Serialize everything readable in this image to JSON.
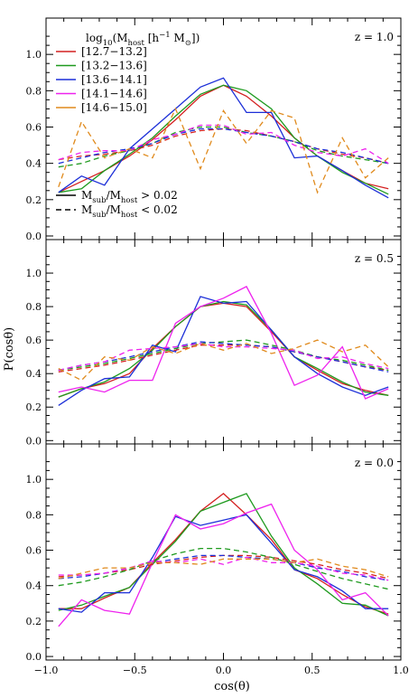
{
  "figure": {
    "ylabel": "P(cosθ)",
    "xlabel": "cos(θ)"
  },
  "legend": {
    "title_parts": [
      "log",
      "10",
      "(M",
      "host",
      " [h",
      "−1",
      " M",
      "⊙",
      "])"
    ],
    "mass_bins": [
      {
        "label": "[12.7−13.2]",
        "color": "#d42020"
      },
      {
        "label": "[13.2−13.6]",
        "color": "#1e9a1e"
      },
      {
        "label": "[13.6−14.1]",
        "color": "#1c2fd8"
      },
      {
        "label": "[14.1−14.6]",
        "color": "#ee22ee"
      },
      {
        "label": "[14.6−15.0]",
        "color": "#e08a1c"
      }
    ],
    "style_solid_parts": [
      "M",
      "sub",
      "/M",
      "host",
      " > 0.02"
    ],
    "style_dashed_parts": [
      "M",
      "sub",
      "/M",
      "host",
      " < 0.02"
    ]
  },
  "chart_data": [
    {
      "type": "line",
      "panel": "top",
      "annotation": "z = 1.0",
      "x": [
        -0.93,
        -0.8,
        -0.67,
        -0.53,
        -0.4,
        -0.27,
        -0.13,
        0.0,
        0.13,
        0.27,
        0.4,
        0.53,
        0.67,
        0.8,
        0.93
      ],
      "xlim": [
        -1.0,
        1.0
      ],
      "ylim": [
        -0.02,
        1.2
      ],
      "yticks": [
        "0.0",
        "0.2",
        "0.4",
        "0.6",
        "0.8",
        "1.0"
      ],
      "xticks": [
        "−1.0",
        "−0.5",
        "0.0",
        "0.5",
        "1.0"
      ],
      "series": [
        {
          "color": "#d42020",
          "dash": false,
          "values": [
            0.24,
            0.3,
            0.36,
            0.44,
            0.53,
            0.64,
            0.77,
            0.83,
            0.77,
            0.66,
            0.54,
            0.44,
            0.36,
            0.29,
            0.26
          ]
        },
        {
          "color": "#1e9a1e",
          "dash": false,
          "values": [
            0.24,
            0.26,
            0.36,
            0.45,
            0.54,
            0.66,
            0.78,
            0.83,
            0.8,
            0.7,
            0.54,
            0.44,
            0.35,
            0.29,
            0.23
          ]
        },
        {
          "color": "#1c2fd8",
          "dash": false,
          "values": [
            0.24,
            0.33,
            0.28,
            0.48,
            0.59,
            0.7,
            0.82,
            0.87,
            0.68,
            0.68,
            0.43,
            0.44,
            0.36,
            0.28,
            0.21
          ]
        },
        {
          "color": "#d42020",
          "dash": true,
          "values": [
            0.42,
            0.44,
            0.45,
            0.47,
            0.5,
            0.55,
            0.58,
            0.59,
            0.58,
            0.55,
            0.52,
            0.48,
            0.45,
            0.43,
            0.4
          ]
        },
        {
          "color": "#1e9a1e",
          "dash": true,
          "values": [
            0.38,
            0.4,
            0.44,
            0.47,
            0.51,
            0.57,
            0.6,
            0.6,
            0.57,
            0.55,
            0.52,
            0.47,
            0.44,
            0.42,
            0.4
          ]
        },
        {
          "color": "#1c2fd8",
          "dash": true,
          "values": [
            0.4,
            0.43,
            0.46,
            0.48,
            0.51,
            0.56,
            0.59,
            0.59,
            0.57,
            0.55,
            0.52,
            0.48,
            0.46,
            0.43,
            0.4
          ]
        },
        {
          "color": "#ee22ee",
          "dash": true,
          "values": [
            0.42,
            0.46,
            0.47,
            0.47,
            0.53,
            0.56,
            0.61,
            0.61,
            0.56,
            0.57,
            0.5,
            0.46,
            0.44,
            0.48,
            0.4
          ]
        },
        {
          "color": "#e08a1c",
          "dash": true,
          "values": [
            0.27,
            0.63,
            0.43,
            0.48,
            0.43,
            0.7,
            0.37,
            0.69,
            0.51,
            0.69,
            0.65,
            0.24,
            0.54,
            0.32,
            0.43
          ]
        }
      ]
    },
    {
      "type": "line",
      "panel": "middle",
      "annotation": "z = 0.5",
      "x": [
        -0.93,
        -0.8,
        -0.67,
        -0.53,
        -0.4,
        -0.27,
        -0.13,
        0.0,
        0.13,
        0.27,
        0.4,
        0.53,
        0.67,
        0.8,
        0.93
      ],
      "xlim": [
        -1.0,
        1.0
      ],
      "ylim": [
        -0.02,
        1.2
      ],
      "yticks": [
        "0.0",
        "0.2",
        "0.4",
        "0.6",
        "0.8",
        "1.0"
      ],
      "xticks": [
        "−1.0",
        "−0.5",
        "0.0",
        "0.5",
        "1.0"
      ],
      "series": [
        {
          "color": "#d42020",
          "dash": false,
          "values": [
            0.26,
            0.31,
            0.34,
            0.4,
            0.55,
            0.68,
            0.8,
            0.82,
            0.8,
            0.65,
            0.5,
            0.42,
            0.34,
            0.3,
            0.27
          ]
        },
        {
          "color": "#1e9a1e",
          "dash": false,
          "values": [
            0.26,
            0.31,
            0.35,
            0.43,
            0.54,
            0.68,
            0.8,
            0.83,
            0.81,
            0.66,
            0.5,
            0.43,
            0.35,
            0.29,
            0.27
          ]
        },
        {
          "color": "#1c2fd8",
          "dash": false,
          "values": [
            0.21,
            0.3,
            0.37,
            0.38,
            0.57,
            0.53,
            0.86,
            0.82,
            0.83,
            0.66,
            0.5,
            0.4,
            0.32,
            0.27,
            0.32
          ]
        },
        {
          "color": "#ee22ee",
          "dash": false,
          "values": [
            0.29,
            0.32,
            0.29,
            0.36,
            0.36,
            0.7,
            0.8,
            0.85,
            0.92,
            0.64,
            0.33,
            0.39,
            0.56,
            0.25,
            0.31
          ]
        },
        {
          "color": "#d42020",
          "dash": true,
          "values": [
            0.41,
            0.43,
            0.45,
            0.48,
            0.51,
            0.54,
            0.57,
            0.57,
            0.57,
            0.56,
            0.53,
            0.5,
            0.47,
            0.44,
            0.42
          ]
        },
        {
          "color": "#1e9a1e",
          "dash": true,
          "values": [
            0.42,
            0.44,
            0.46,
            0.49,
            0.52,
            0.55,
            0.58,
            0.59,
            0.6,
            0.57,
            0.54,
            0.5,
            0.48,
            0.45,
            0.42
          ]
        },
        {
          "color": "#1c2fd8",
          "dash": true,
          "values": [
            0.42,
            0.45,
            0.47,
            0.5,
            0.53,
            0.56,
            0.59,
            0.58,
            0.57,
            0.56,
            0.53,
            0.5,
            0.47,
            0.44,
            0.41
          ]
        },
        {
          "color": "#ee22ee",
          "dash": true,
          "values": [
            0.42,
            0.45,
            0.47,
            0.54,
            0.55,
            0.56,
            0.58,
            0.56,
            0.56,
            0.55,
            0.54,
            0.49,
            0.5,
            0.46,
            0.43
          ]
        },
        {
          "color": "#e08a1c",
          "dash": true,
          "values": [
            0.43,
            0.36,
            0.5,
            0.48,
            0.56,
            0.52,
            0.58,
            0.54,
            0.58,
            0.52,
            0.55,
            0.6,
            0.53,
            0.57,
            0.44
          ]
        }
      ]
    },
    {
      "type": "line",
      "panel": "bottom",
      "annotation": "z = 0.0",
      "x": [
        -0.93,
        -0.8,
        -0.67,
        -0.53,
        -0.4,
        -0.27,
        -0.13,
        0.0,
        0.13,
        0.27,
        0.4,
        0.53,
        0.67,
        0.8,
        0.93
      ],
      "xlim": [
        -1.0,
        1.0
      ],
      "ylim": [
        -0.02,
        1.2
      ],
      "yticks": [
        "0.0",
        "0.2",
        "0.4",
        "0.6",
        "0.8",
        "1.0"
      ],
      "xticks": [
        "−1.0",
        "−0.5",
        "0.0",
        "0.5",
        "1.0"
      ],
      "series": [
        {
          "color": "#d42020",
          "dash": false,
          "values": [
            0.27,
            0.27,
            0.33,
            0.39,
            0.53,
            0.66,
            0.82,
            0.92,
            0.8,
            0.66,
            0.49,
            0.44,
            0.35,
            0.28,
            0.24
          ]
        },
        {
          "color": "#1e9a1e",
          "dash": false,
          "values": [
            0.26,
            0.29,
            0.34,
            0.39,
            0.52,
            0.65,
            0.82,
            0.87,
            0.92,
            0.68,
            0.5,
            0.41,
            0.3,
            0.29,
            0.23
          ]
        },
        {
          "color": "#1c2fd8",
          "dash": false,
          "values": [
            0.27,
            0.25,
            0.36,
            0.36,
            0.56,
            0.79,
            0.74,
            0.77,
            0.8,
            0.64,
            0.49,
            0.45,
            0.37,
            0.27,
            0.27
          ]
        },
        {
          "color": "#ee22ee",
          "dash": false,
          "values": [
            0.17,
            0.32,
            0.26,
            0.24,
            0.53,
            0.8,
            0.72,
            0.75,
            0.81,
            0.86,
            0.6,
            0.49,
            0.32,
            0.36,
            0.23
          ]
        },
        {
          "color": "#d42020",
          "dash": true,
          "values": [
            0.45,
            0.46,
            0.47,
            0.49,
            0.52,
            0.54,
            0.56,
            0.57,
            0.57,
            0.56,
            0.54,
            0.52,
            0.49,
            0.47,
            0.44
          ]
        },
        {
          "color": "#1e9a1e",
          "dash": true,
          "values": [
            0.4,
            0.42,
            0.45,
            0.49,
            0.54,
            0.58,
            0.61,
            0.61,
            0.59,
            0.56,
            0.52,
            0.48,
            0.44,
            0.41,
            0.38
          ]
        },
        {
          "color": "#1c2fd8",
          "dash": true,
          "values": [
            0.44,
            0.45,
            0.47,
            0.5,
            0.53,
            0.55,
            0.57,
            0.57,
            0.56,
            0.55,
            0.53,
            0.5,
            0.48,
            0.45,
            0.43
          ]
        },
        {
          "color": "#ee22ee",
          "dash": true,
          "values": [
            0.46,
            0.46,
            0.47,
            0.5,
            0.54,
            0.53,
            0.55,
            0.52,
            0.56,
            0.53,
            0.53,
            0.51,
            0.47,
            0.46,
            0.43
          ]
        },
        {
          "color": "#e08a1c",
          "dash": true,
          "values": [
            0.44,
            0.47,
            0.5,
            0.5,
            0.53,
            0.53,
            0.52,
            0.55,
            0.55,
            0.55,
            0.53,
            0.55,
            0.51,
            0.49,
            0.45
          ]
        }
      ]
    }
  ]
}
